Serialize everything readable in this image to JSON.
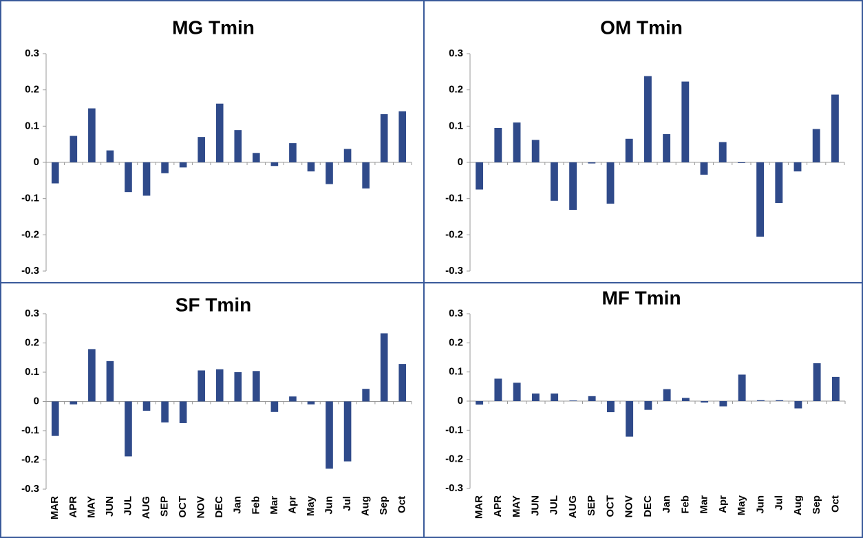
{
  "chart_data": [
    {
      "type": "bar",
      "title": "MG Tmin",
      "categories": [
        null,
        null,
        null,
        null,
        null,
        null,
        null,
        null,
        null,
        null,
        null,
        null,
        null,
        null,
        null,
        null,
        null,
        null,
        null,
        null
      ],
      "values": [
        -0.058,
        0.073,
        0.149,
        0.033,
        -0.082,
        -0.092,
        -0.03,
        -0.014,
        0.07,
        0.162,
        0.089,
        0.026,
        -0.01,
        0.053,
        -0.025,
        -0.06,
        0.037,
        -0.072,
        0.133,
        0.141
      ],
      "color": "#2f4a8a",
      "ylim": [
        -0.3,
        0.3
      ],
      "yticks": [
        -0.3,
        -0.2,
        -0.1,
        0,
        0.1,
        0.2,
        0.3
      ]
    },
    {
      "type": "bar",
      "title": "OM Tmin",
      "categories": [
        null,
        null,
        null,
        null,
        null,
        null,
        null,
        null,
        null,
        null,
        null,
        null,
        null,
        null,
        null,
        null,
        null,
        null,
        null,
        null
      ],
      "values": [
        -0.075,
        0.095,
        0.11,
        0.062,
        -0.106,
        -0.131,
        -0.003,
        -0.114,
        0.065,
        0.238,
        0.078,
        0.223,
        -0.034,
        0.056,
        -0.002,
        -0.205,
        -0.112,
        -0.025,
        0.092,
        0.187
      ],
      "color": "#2f4a8a",
      "ylim": [
        -0.3,
        0.3
      ],
      "yticks": [
        -0.3,
        -0.2,
        -0.1,
        0,
        0.1,
        0.2,
        0.3
      ]
    },
    {
      "type": "bar",
      "title": "SF Tmin",
      "categories": [
        "MAR",
        "APR",
        "MAY",
        "JUN",
        "JUL",
        "AUG",
        "SEP",
        "OCT",
        "NOV",
        "DEC",
        "Jan",
        "Feb",
        "Mar",
        "Apr",
        "May",
        "Jun",
        "Jul",
        "Aug",
        "Sep",
        "Oct"
      ],
      "values": [
        -0.118,
        -0.01,
        0.179,
        0.138,
        -0.188,
        -0.032,
        -0.072,
        -0.074,
        0.106,
        0.11,
        0.1,
        0.104,
        -0.036,
        0.017,
        -0.01,
        -0.23,
        -0.205,
        0.043,
        0.233,
        0.128
      ],
      "color": "#2f4a8a",
      "ylim": [
        -0.3,
        0.3
      ],
      "yticks": [
        -0.3,
        -0.2,
        -0.1,
        0,
        0.1,
        0.2,
        0.3
      ]
    },
    {
      "type": "bar",
      "title": "MF Tmin",
      "categories": [
        "MAR",
        "APR",
        "MAY",
        "JUN",
        "JUL",
        "AUG",
        "SEP",
        "OCT",
        "NOV",
        "DEC",
        "Jan",
        "Feb",
        "Mar",
        "Apr",
        "May",
        "Jun",
        "Jul",
        "Aug",
        "Sep",
        "Oct"
      ],
      "values": [
        -0.012,
        0.077,
        0.063,
        0.026,
        0.026,
        0.002,
        0.017,
        -0.038,
        -0.122,
        -0.03,
        0.041,
        0.011,
        -0.005,
        -0.018,
        0.091,
        0.003,
        0.003,
        -0.025,
        0.13,
        0.083
      ],
      "color": "#2f4a8a",
      "ylim": [
        -0.3,
        0.3
      ],
      "yticks": [
        -0.3,
        -0.2,
        -0.1,
        0,
        0.1,
        0.2,
        0.3
      ]
    }
  ]
}
